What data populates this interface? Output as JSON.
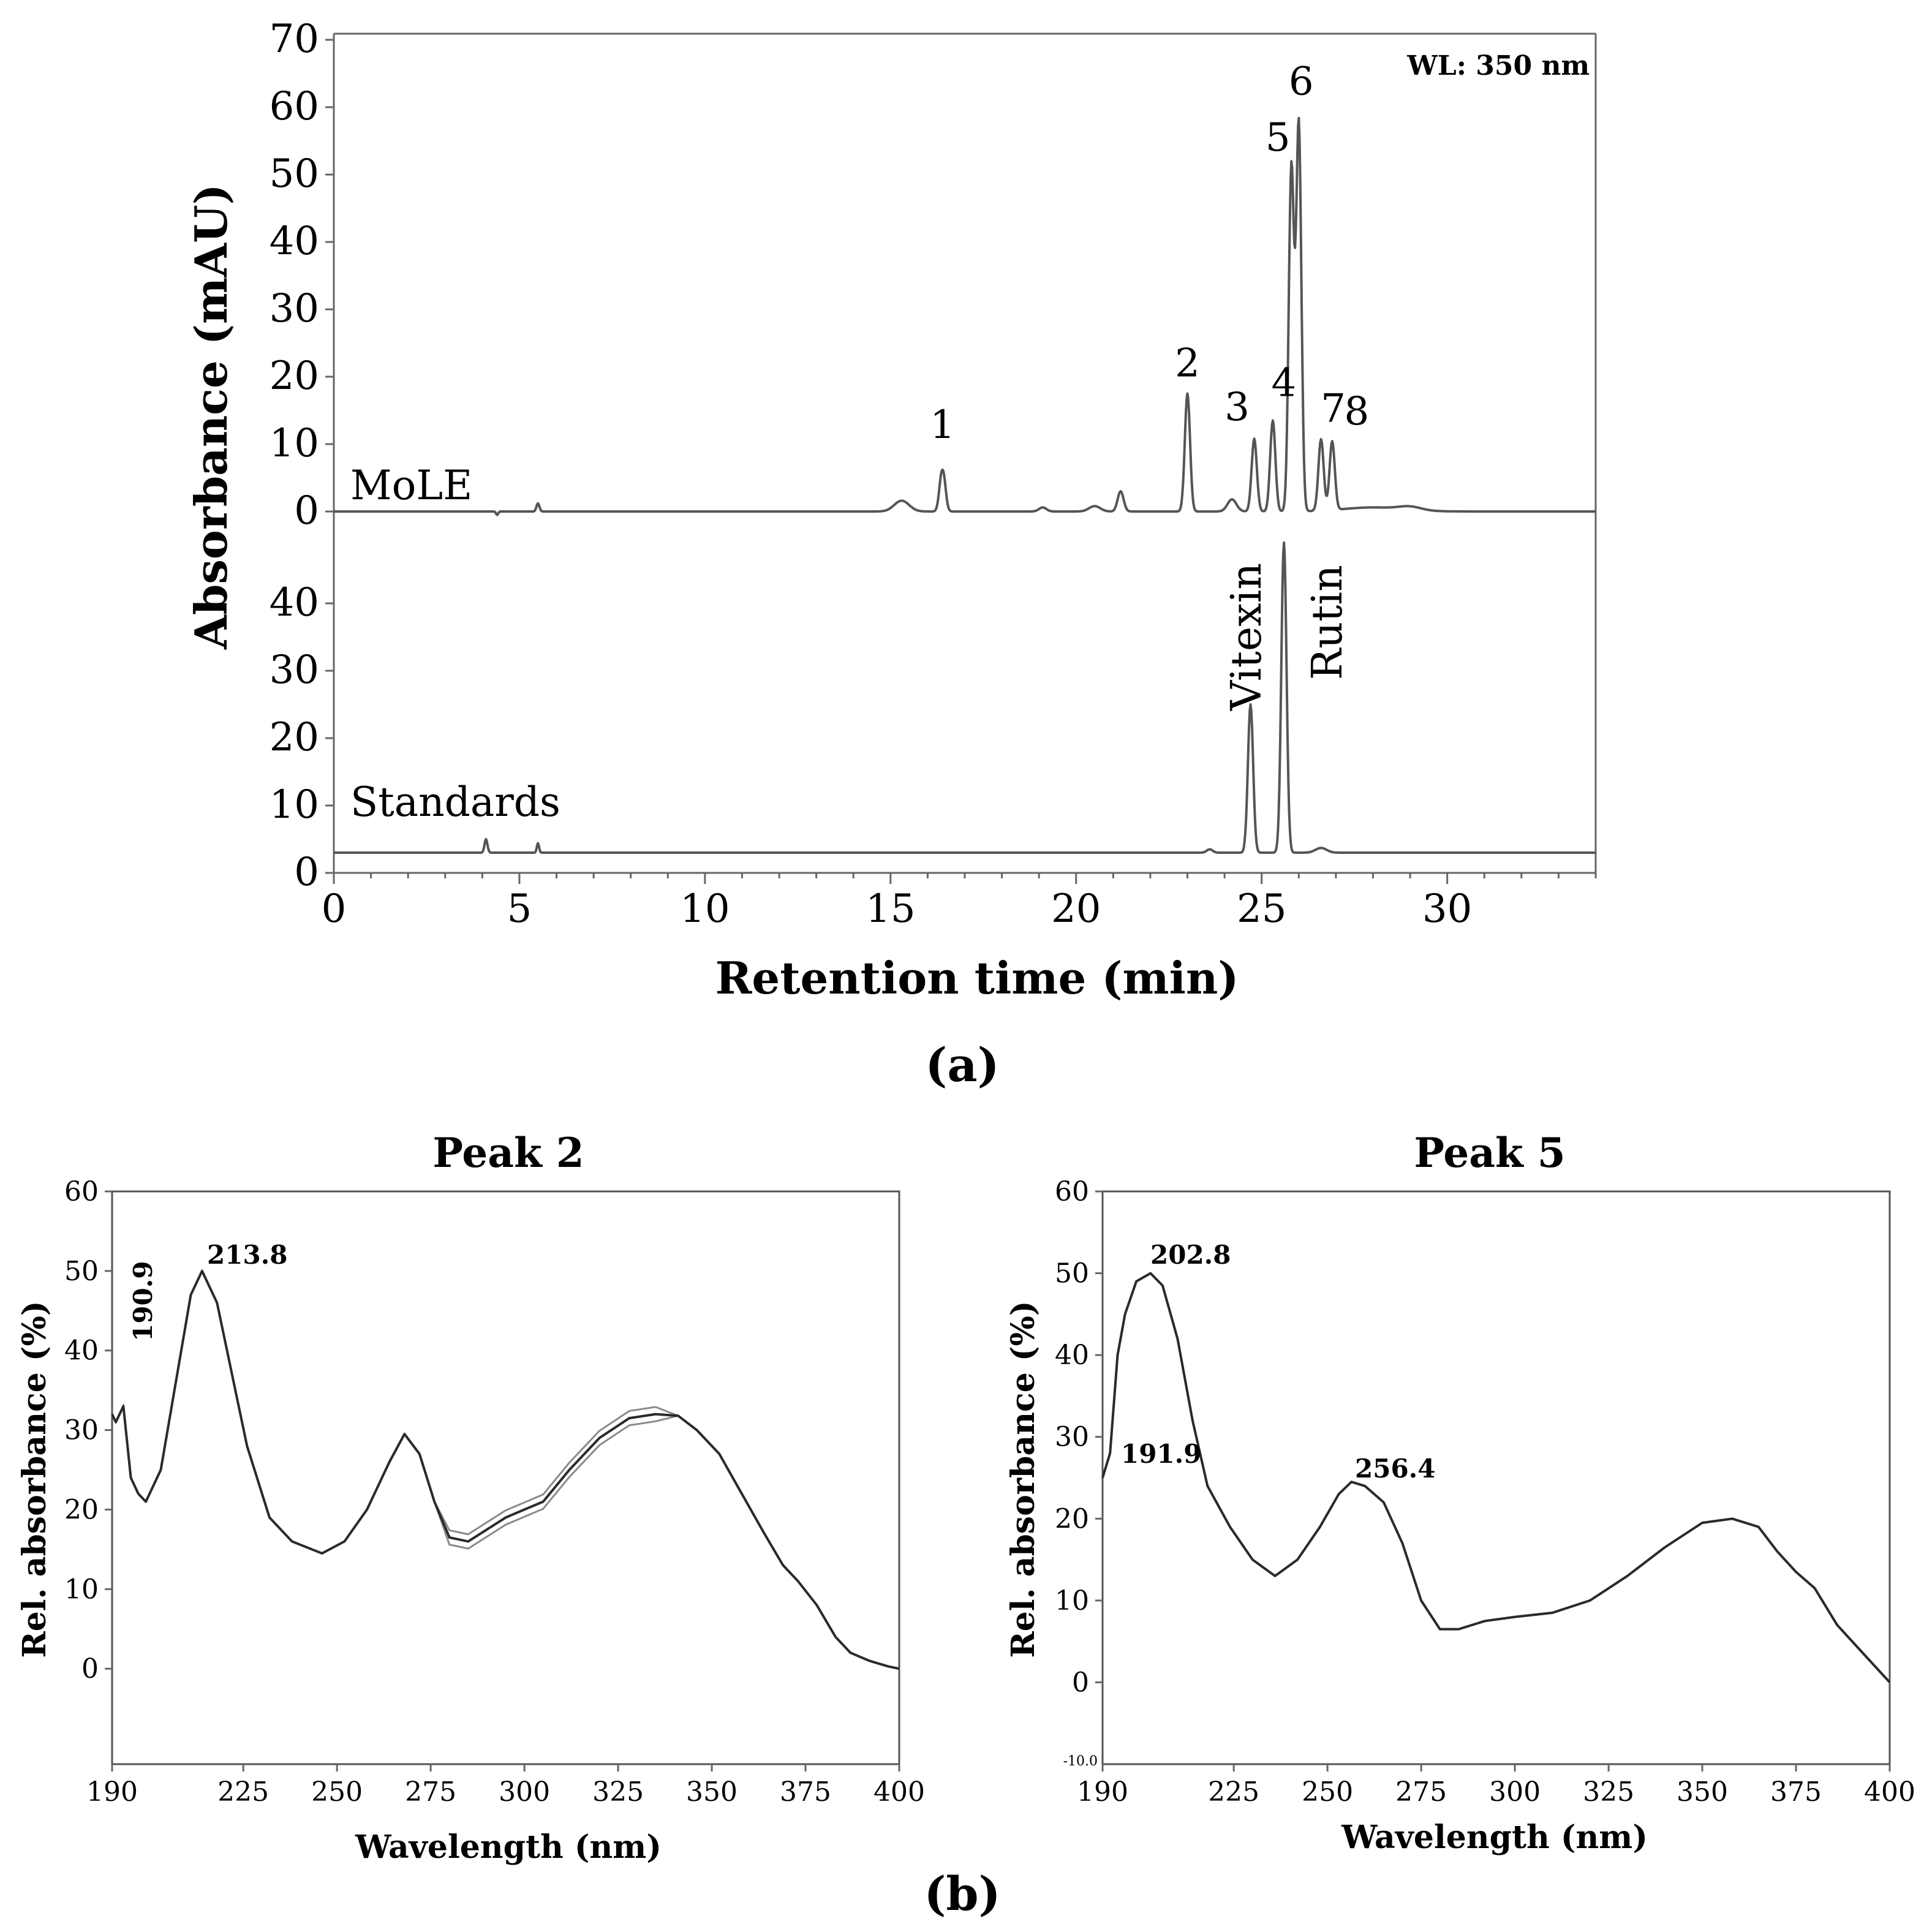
{
  "chart_data": [
    {
      "id": "a",
      "type": "line",
      "panel_label": "(a)",
      "xlabel": "Retention time (min)",
      "ylabel": "Absorbance (mAU)",
      "annotation": "WL: 350 nm",
      "xlim": [
        0,
        34
      ],
      "xticks": [
        0,
        5,
        10,
        15,
        20,
        25,
        30
      ],
      "yticks_top": [
        0,
        10,
        20,
        30,
        40,
        50,
        60,
        70
      ],
      "yticks_bottom": [
        0,
        10,
        20,
        30,
        40
      ],
      "grid": false,
      "series": [
        {
          "name": "MoLE",
          "baseline": 0,
          "peaks": [
            {
              "label": "1",
              "rt": 16.4,
              "height": 8.2
            },
            {
              "label": "2",
              "rt": 23.0,
              "height": 17.5
            },
            {
              "label": "3",
              "rt": 24.8,
              "height": 10.8
            },
            {
              "label": "4",
              "rt": 25.3,
              "height": 13.5
            },
            {
              "label": "5",
              "rt": 25.8,
              "height": 51.0
            },
            {
              "label": "6",
              "rt": 26.0,
              "height": 57.5
            },
            {
              "label": "7",
              "rt": 26.6,
              "height": 10.6
            },
            {
              "label": "8",
              "rt": 26.9,
              "height": 10.2
            }
          ]
        },
        {
          "name": "Standards",
          "baseline": 3,
          "peaks": [
            {
              "label": "Vitexin",
              "rt": 24.7,
              "height": 22
            },
            {
              "label": "Rutin",
              "rt": 25.6,
              "height": 46
            }
          ]
        }
      ]
    },
    {
      "id": "b1",
      "type": "line",
      "panel_label": "(b)",
      "title": "Peak 2",
      "xlabel": "Wavelength (nm)",
      "ylabel": "Rel. absorbance (%)",
      "xlim": [
        190,
        400
      ],
      "ylim": [
        -12,
        60
      ],
      "xticks": [
        190,
        225,
        250,
        275,
        300,
        325,
        350,
        375,
        400
      ],
      "yticks": [
        0,
        10,
        20,
        30,
        40,
        50,
        60
      ],
      "maxima": [
        {
          "label": "213.8",
          "x": 213.8,
          "y": 50
        },
        {
          "label": "190.9",
          "x": 190.9,
          "y": 33
        }
      ],
      "x": [
        190,
        191,
        193,
        195,
        197,
        199,
        203,
        207,
        211,
        214,
        218,
        222,
        226,
        232,
        238,
        246,
        252,
        258,
        264,
        268,
        272,
        276,
        280,
        285,
        290,
        295,
        300,
        305,
        312,
        320,
        328,
        335,
        341,
        346,
        352,
        358,
        364,
        369,
        373,
        378,
        383,
        387,
        392,
        397,
        400
      ],
      "y": [
        32,
        31,
        33,
        24,
        22,
        21,
        25,
        36,
        47,
        50,
        46,
        37,
        28,
        19,
        16,
        14.5,
        16,
        20,
        26,
        29.5,
        27,
        21,
        16.5,
        16,
        17.5,
        19,
        20,
        21,
        25,
        29,
        31.5,
        32,
        31.8,
        30,
        27,
        22,
        17,
        13,
        11,
        8,
        4,
        2,
        1,
        0.3,
        0
      ]
    },
    {
      "id": "b2",
      "type": "line",
      "title": "Peak 5",
      "xlabel": "Wavelength (nm)",
      "ylabel": "Rel. absorbance (%)",
      "xlim": [
        190,
        400
      ],
      "ylim": [
        -10,
        60
      ],
      "xticks": [
        190,
        225,
        250,
        275,
        300,
        325,
        350,
        375,
        400
      ],
      "yticks": [
        0,
        10,
        20,
        30,
        40,
        50,
        60
      ],
      "ymin_label": "-10.0",
      "maxima": [
        {
          "label": "202.8",
          "x": 202.8,
          "y": 50
        },
        {
          "label": "191.9",
          "x": 191.9,
          "y": 28
        },
        {
          "label": "256.4",
          "x": 256.4,
          "y": 24.5
        }
      ],
      "x": [
        190,
        192,
        194,
        196,
        199,
        202.8,
        206,
        210,
        214,
        218,
        224,
        230,
        236,
        242,
        248,
        253,
        256.4,
        260,
        265,
        270,
        275,
        280,
        285,
        292,
        300,
        310,
        320,
        330,
        340,
        350,
        358,
        365,
        370,
        375,
        380,
        386,
        392,
        397,
        400
      ],
      "y": [
        25,
        28,
        40,
        45,
        49,
        50,
        48.5,
        42,
        32,
        24,
        19,
        15,
        13,
        15,
        19,
        23,
        24.5,
        24,
        22,
        17,
        10,
        6.5,
        6.5,
        7.5,
        8,
        8.5,
        10,
        13,
        16.5,
        19.5,
        20,
        19,
        16,
        13.5,
        11.5,
        7,
        4,
        1.5,
        0
      ]
    }
  ]
}
